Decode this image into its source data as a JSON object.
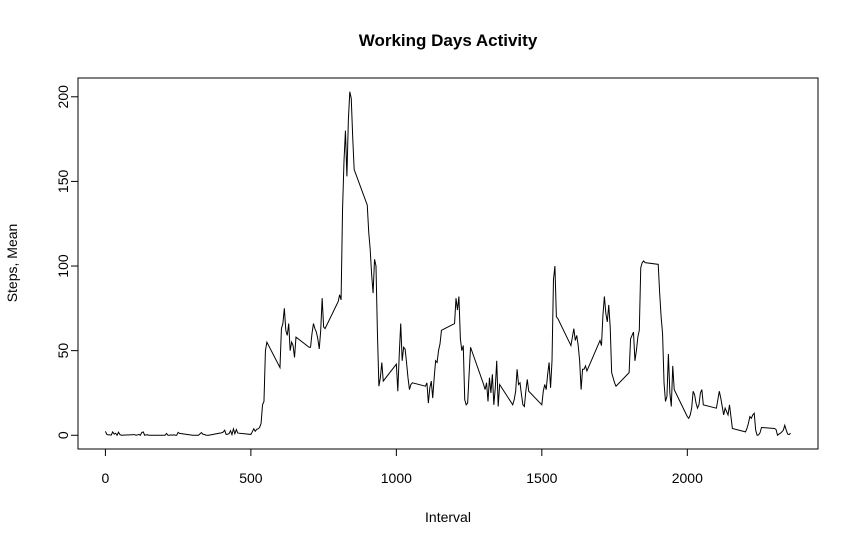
{
  "chart_data": {
    "type": "line",
    "title": "Working Days Activity",
    "x_label": "Interval",
    "y_label": "Steps, Mean",
    "x": [
      0,
      5,
      10,
      15,
      20,
      25,
      30,
      35,
      40,
      45,
      50,
      55,
      100,
      105,
      110,
      115,
      120,
      125,
      130,
      135,
      140,
      145,
      150,
      155,
      200,
      205,
      210,
      215,
      220,
      225,
      230,
      235,
      240,
      245,
      250,
      255,
      300,
      305,
      310,
      315,
      320,
      325,
      330,
      335,
      340,
      345,
      350,
      355,
      400,
      405,
      410,
      415,
      420,
      425,
      430,
      435,
      440,
      445,
      450,
      455,
      500,
      505,
      510,
      515,
      520,
      525,
      530,
      535,
      540,
      545,
      550,
      555,
      600,
      605,
      610,
      615,
      620,
      625,
      630,
      635,
      640,
      645,
      650,
      655,
      700,
      705,
      710,
      715,
      720,
      725,
      730,
      735,
      740,
      745,
      750,
      755,
      800,
      805,
      810,
      815,
      820,
      825,
      830,
      835,
      840,
      845,
      850,
      855,
      900,
      905,
      910,
      915,
      920,
      925,
      930,
      935,
      940,
      945,
      950,
      955,
      1000,
      1005,
      1010,
      1015,
      1020,
      1025,
      1030,
      1035,
      1040,
      1045,
      1050,
      1055,
      1100,
      1105,
      1110,
      1115,
      1120,
      1125,
      1130,
      1135,
      1140,
      1145,
      1150,
      1155,
      1200,
      1205,
      1210,
      1215,
      1220,
      1225,
      1230,
      1235,
      1240,
      1245,
      1250,
      1255,
      1300,
      1305,
      1310,
      1315,
      1320,
      1325,
      1330,
      1335,
      1340,
      1345,
      1350,
      1355,
      1400,
      1405,
      1410,
      1415,
      1420,
      1425,
      1430,
      1435,
      1440,
      1445,
      1450,
      1455,
      1500,
      1505,
      1510,
      1515,
      1520,
      1525,
      1530,
      1535,
      1540,
      1545,
      1550,
      1555,
      1600,
      1605,
      1610,
      1615,
      1620,
      1625,
      1630,
      1635,
      1640,
      1645,
      1650,
      1655,
      1700,
      1705,
      1710,
      1715,
      1720,
      1725,
      1730,
      1735,
      1740,
      1745,
      1750,
      1755,
      1800,
      1805,
      1810,
      1815,
      1820,
      1825,
      1830,
      1835,
      1840,
      1845,
      1850,
      1855,
      1900,
      1905,
      1910,
      1915,
      1920,
      1925,
      1930,
      1935,
      1940,
      1945,
      1950,
      1955,
      2000,
      2005,
      2010,
      2015,
      2020,
      2025,
      2030,
      2035,
      2040,
      2045,
      2050,
      2055,
      2100,
      2105,
      2110,
      2115,
      2120,
      2125,
      2130,
      2135,
      2140,
      2145,
      2150,
      2155,
      2200,
      2205,
      2210,
      2215,
      2220,
      2225,
      2230,
      2235,
      2240,
      2245,
      2250,
      2255,
      2300,
      2305,
      2310,
      2315,
      2320,
      2325,
      2330,
      2335,
      2340,
      2345,
      2350,
      2355
    ],
    "values": [
      2.3,
      0.5,
      0.2,
      0.2,
      0.1,
      2,
      0.7,
      1.2,
      0,
      1.8,
      0.4,
      0,
      0.4,
      0,
      0.2,
      0.5,
      0,
      1.6,
      2,
      0,
      0.2,
      0.3,
      0,
      0,
      0,
      0,
      1.1,
      0,
      0,
      0.2,
      0,
      0.3,
      0,
      0,
      1.7,
      1.1,
      0,
      0,
      0,
      0,
      0,
      0.8,
      1.6,
      0.6,
      0.5,
      0.1,
      0,
      0,
      1.5,
      1.9,
      3,
      0.5,
      0.6,
      1,
      2.7,
      0.4,
      3.8,
      0.9,
      3.4,
      1.3,
      0.5,
      2.1,
      3.8,
      2.4,
      3.5,
      3.8,
      4.6,
      7,
      18,
      20,
      50,
      55,
      40,
      63,
      66,
      75,
      62,
      59,
      66,
      50,
      55,
      53,
      46,
      58,
      52,
      52,
      60,
      66,
      63,
      61,
      57,
      51,
      62,
      81,
      64,
      63,
      79,
      83,
      80,
      133,
      162,
      180,
      153,
      186,
      203,
      199,
      176,
      157,
      136,
      120,
      110,
      95,
      84,
      104,
      100,
      60,
      29,
      34,
      43,
      32,
      42,
      26,
      48,
      66,
      44,
      52,
      51,
      43,
      34,
      27,
      30,
      31,
      29,
      31,
      19,
      28,
      32,
      22,
      34,
      44,
      43,
      50,
      54,
      62,
      66,
      81,
      74,
      82,
      57,
      50,
      53,
      21,
      18,
      19,
      36,
      52,
      30,
      27,
      31,
      20,
      34,
      25,
      36,
      18,
      28,
      44,
      17,
      30,
      18,
      21,
      26,
      39,
      30,
      31,
      24,
      18,
      17,
      26,
      33,
      26,
      18,
      26,
      30,
      27,
      36,
      43,
      28,
      44,
      92,
      100,
      70,
      69,
      53,
      58,
      63,
      56,
      59,
      53,
      44,
      27,
      39,
      39,
      41,
      38,
      56,
      53,
      71,
      82,
      72,
      67,
      77,
      64,
      37,
      34,
      31,
      29,
      37,
      57,
      59,
      61,
      44,
      50,
      58,
      62,
      99,
      102,
      103,
      102,
      101,
      84,
      70,
      60,
      31,
      20,
      23,
      48,
      25,
      17,
      41,
      27,
      11,
      10,
      12,
      16,
      26,
      24,
      19,
      16,
      18,
      25,
      27,
      18,
      16,
      21,
      26,
      22,
      17,
      12,
      16,
      14,
      12,
      18,
      11,
      4,
      2,
      4,
      7,
      11,
      10,
      12,
      13,
      3,
      0,
      0.2,
      1.5,
      4.6,
      4,
      3.4,
      0,
      0.7,
      1.2,
      2,
      3,
      5.9,
      3,
      0.7,
      0.4,
      1.3
    ],
    "color": "#000000",
    "xlim": [
      -94.2,
      2449.2
    ],
    "ylim": [
      -8.12,
      211.1
    ],
    "xticks": [
      0,
      500,
      1000,
      1500,
      2000
    ],
    "yticks": [
      0,
      50,
      100,
      150,
      200
    ],
    "grid": false
  }
}
